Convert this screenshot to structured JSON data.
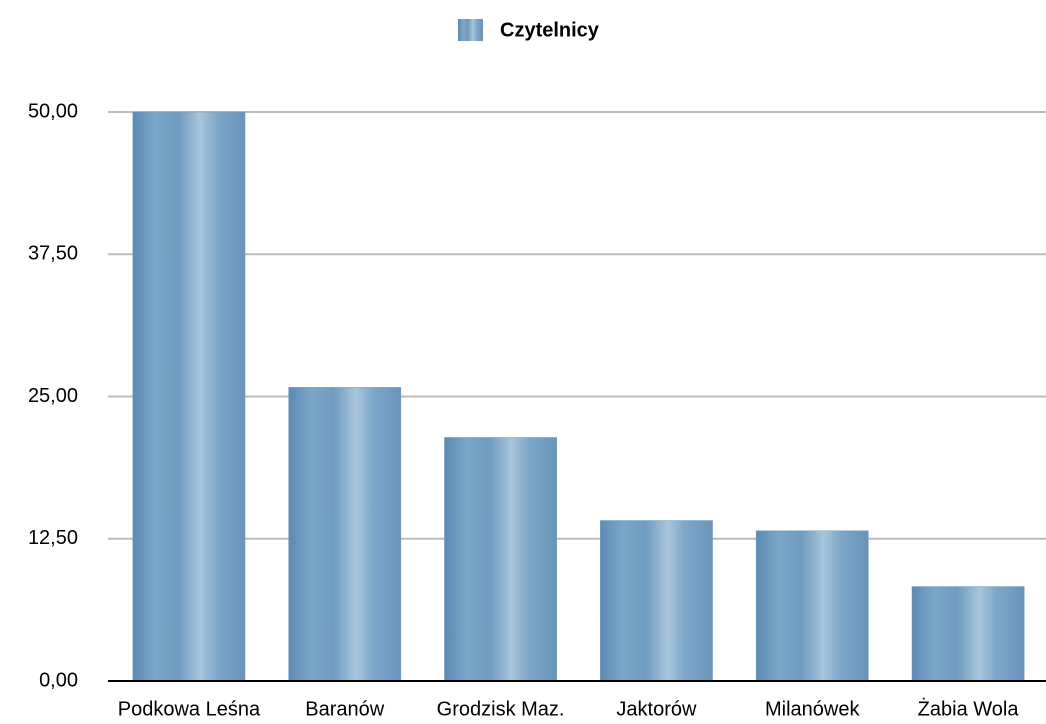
{
  "chart_data": {
    "type": "bar",
    "legend": "top",
    "categories": [
      "Podkowa Leśna",
      "Baranów",
      "Grodzisk Maz.",
      "Jaktorów",
      "Milanówek",
      "Żabia Wola"
    ],
    "series": [
      {
        "name": "Czytelnicy",
        "color": "#6f9bc0",
        "values": [
          50,
          25.8,
          21.4,
          14.1,
          13.2,
          8.3
        ]
      }
    ],
    "ylim": [
      0,
      50
    ],
    "yticks": [
      {
        "value": 0,
        "label": "0,00"
      },
      {
        "value": 12.5,
        "label": "12,50"
      },
      {
        "value": 25,
        "label": "25,00"
      },
      {
        "value": 37.5,
        "label": "37,50"
      },
      {
        "value": 50,
        "label": "50,00"
      }
    ],
    "grid": true
  }
}
